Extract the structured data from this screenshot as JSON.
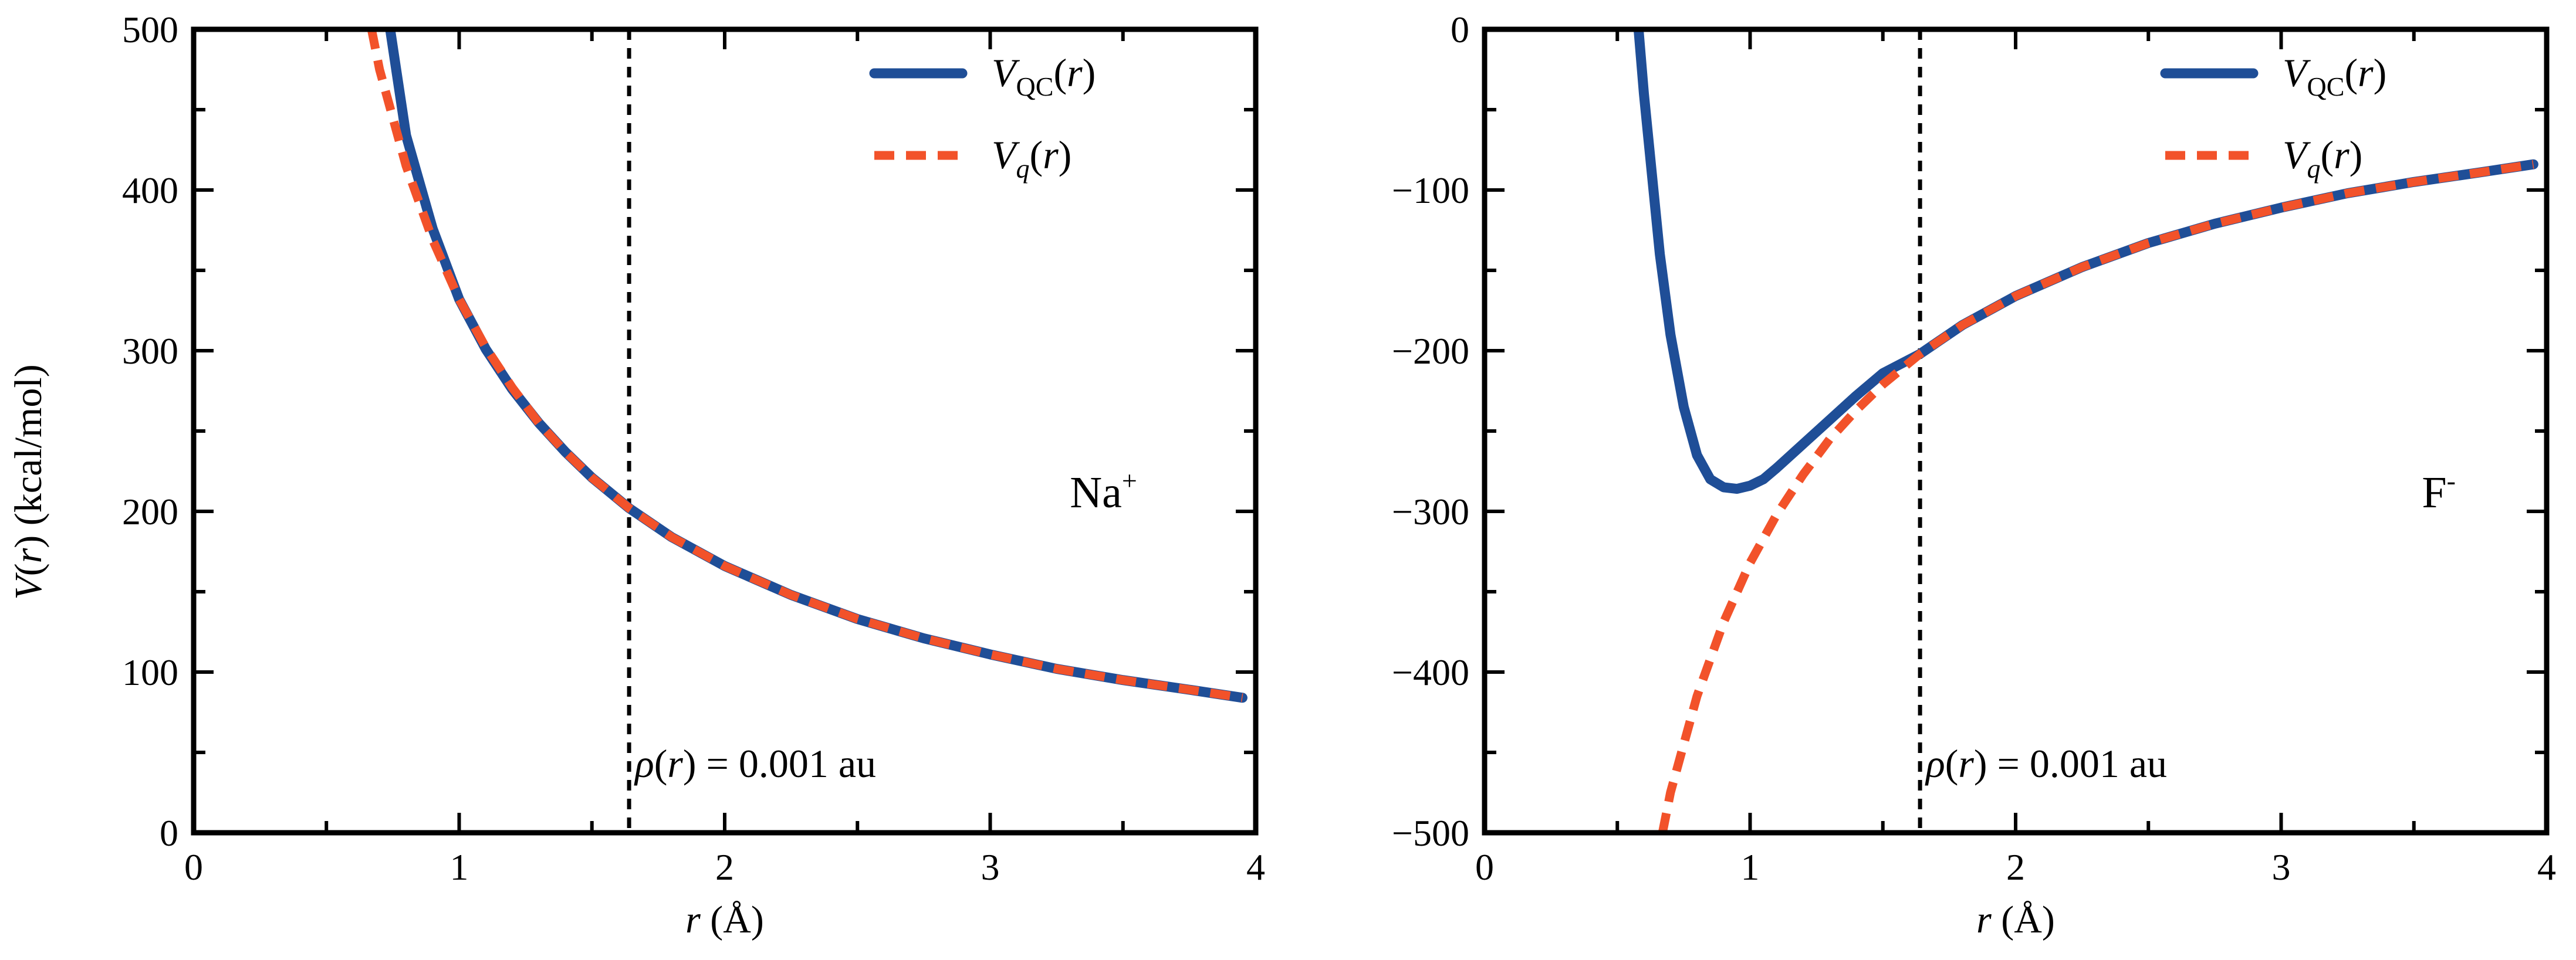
{
  "figure": {
    "ylabel_left": "V(r) (kcal/mol)"
  },
  "chart_data": [
    {
      "type": "line",
      "xlabel": "r (Å)",
      "ylabel": "V(r) (kcal/mol)",
      "xlim": [
        0,
        4
      ],
      "ylim": [
        0,
        500
      ],
      "xticks": [
        0,
        1,
        2,
        3,
        4
      ],
      "yticks": [
        0,
        100,
        200,
        300,
        400,
        500
      ],
      "xtick_labels": [
        "0",
        "1",
        "2",
        "3",
        "4"
      ],
      "ytick_labels": [
        "0",
        "100",
        "200",
        "300",
        "400",
        "500"
      ],
      "ion_label": "Na",
      "ion_charge": "+",
      "vline_x": 1.64,
      "annotation": "ρ(r) = 0.001 au",
      "legend": [
        "V_QC(r)",
        "V_q(r)"
      ],
      "legend_position": "top-right",
      "series": [
        {
          "name": "V_QC(r)",
          "color": "#1f4e97",
          "style": "solid",
          "x": [
            0.74,
            0.8,
            0.9,
            1.0,
            1.1,
            1.2,
            1.3,
            1.4,
            1.5,
            1.64,
            1.8,
            2.0,
            2.25,
            2.5,
            2.75,
            3.0,
            3.25,
            3.5,
            3.75,
            3.95
          ],
          "y": [
            500,
            434,
            376,
            332,
            301,
            276,
            255,
            237,
            221,
            202,
            184,
            166,
            148,
            133,
            121,
            111,
            102,
            95,
            89,
            84
          ]
        },
        {
          "name": "V_q(r)",
          "color": "#f2522a",
          "style": "dashed",
          "x": [
            0.67,
            0.7,
            0.8,
            0.9,
            1.0,
            1.1,
            1.2,
            1.3,
            1.4,
            1.5,
            1.64,
            1.8,
            2.0,
            2.25,
            2.5,
            2.75,
            3.0,
            3.25,
            3.5,
            3.75,
            3.95
          ],
          "y": [
            500,
            475,
            415,
            369,
            332,
            302,
            277,
            255,
            237,
            221,
            202,
            184,
            166,
            148,
            133,
            121,
            111,
            102,
            95,
            89,
            84
          ]
        }
      ]
    },
    {
      "type": "line",
      "xlabel": "r (Å)",
      "ylabel": "",
      "xlim": [
        0,
        4
      ],
      "ylim": [
        -500,
        0
      ],
      "xticks": [
        0,
        1,
        2,
        3,
        4
      ],
      "yticks": [
        -500,
        -400,
        -300,
        -200,
        -100,
        0
      ],
      "xtick_labels": [
        "0",
        "1",
        "2",
        "3",
        "4"
      ],
      "ytick_labels": [
        "−500",
        "−400",
        "−300",
        "−200",
        "−100",
        "0"
      ],
      "ion_label": "F",
      "ion_charge": "-",
      "vline_x": 1.64,
      "annotation": "ρ(r) = 0.001 au",
      "legend": [
        "V_QC(r)",
        "V_q(r)"
      ],
      "legend_position": "top-right",
      "series": [
        {
          "name": "V_QC(r)",
          "color": "#1f4e97",
          "style": "solid",
          "x": [
            0.58,
            0.6,
            0.63,
            0.66,
            0.7,
            0.75,
            0.8,
            0.85,
            0.9,
            0.95,
            1.0,
            1.05,
            1.1,
            1.2,
            1.3,
            1.4,
            1.5,
            1.64,
            1.8,
            2.0,
            2.25,
            2.5,
            2.75,
            3.0,
            3.25,
            3.5,
            3.75,
            3.95
          ],
          "y": [
            0,
            -40,
            -90,
            -140,
            -190,
            -235,
            -265,
            -280,
            -285,
            -286,
            -284,
            -280,
            -273,
            -258,
            -243,
            -228,
            -214,
            -202,
            -184,
            -166,
            -148,
            -133,
            -121,
            -111,
            -102,
            -95,
            -89,
            -84
          ]
        },
        {
          "name": "V_q(r)",
          "color": "#f2522a",
          "style": "dashed",
          "x": [
            0.67,
            0.7,
            0.8,
            0.9,
            1.0,
            1.1,
            1.2,
            1.3,
            1.4,
            1.5,
            1.64,
            1.8,
            2.0,
            2.25,
            2.5,
            2.75,
            3.0,
            3.25,
            3.5,
            3.75,
            3.95
          ],
          "y": [
            -500,
            -475,
            -415,
            -369,
            -332,
            -302,
            -277,
            -255,
            -237,
            -221,
            -202,
            -184,
            -166,
            -148,
            -133,
            -121,
            -111,
            -102,
            -95,
            -89,
            -84
          ]
        }
      ]
    }
  ]
}
